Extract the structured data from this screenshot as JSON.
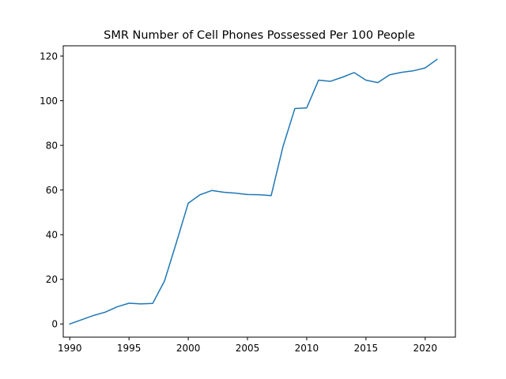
{
  "chart_data": {
    "type": "line",
    "title": "SMR Number of Cell Phones Possessed Per 100 People",
    "xlabel": "",
    "ylabel": "",
    "xlim": [
      1989.45,
      2022.55
    ],
    "ylim": [
      -5.9,
      124.6
    ],
    "x_ticks": [
      1990,
      1995,
      2000,
      2005,
      2010,
      2015,
      2020
    ],
    "y_ticks": [
      0,
      20,
      40,
      60,
      80,
      100,
      120
    ],
    "x_tick_labels": [
      "1990",
      "1995",
      "2000",
      "2005",
      "2010",
      "2015",
      "2020"
    ],
    "y_tick_labels": [
      "0",
      "20",
      "40",
      "60",
      "80",
      "100",
      "120"
    ],
    "grid": false,
    "series": [
      {
        "color": "#1f77b4",
        "x": [
          1990,
          1991,
          1992,
          1993,
          1994,
          1995,
          1996,
          1997,
          1998,
          1999,
          2000,
          2001,
          2002,
          2003,
          2004,
          2005,
          2006,
          2007,
          2008,
          2009,
          2010,
          2011,
          2012,
          2013,
          2014,
          2015,
          2016,
          2017,
          2018,
          2019,
          2020,
          2021
        ],
        "values": [
          0,
          1.9,
          3.8,
          5.3,
          7.7,
          9.3,
          9.0,
          9.2,
          19.3,
          36.5,
          54.1,
          57.9,
          59.8,
          59.0,
          58.6,
          58.0,
          57.9,
          57.5,
          79.5,
          96.5,
          96.8,
          109.2,
          108.7,
          110.5,
          112.6,
          109.2,
          108.1,
          111.6,
          112.7,
          113.4,
          114.7,
          118.5
        ]
      }
    ]
  }
}
